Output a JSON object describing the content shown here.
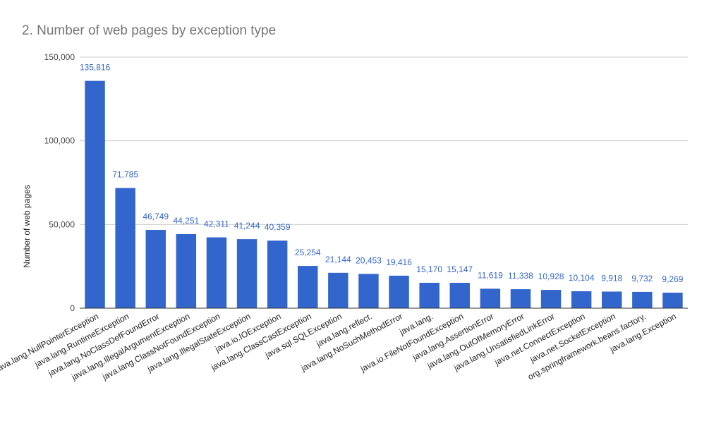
{
  "chart_data": {
    "type": "bar",
    "title": "2. Number of web pages by exception type",
    "xlabel": "",
    "ylabel": "Number of web pages",
    "ylim": [
      0,
      150000
    ],
    "yticks": [
      0,
      50000,
      100000,
      150000
    ],
    "ytick_labels": [
      "0",
      "50,000",
      "100,000",
      "150,000"
    ],
    "grid": true,
    "legend": "none",
    "bar_color": "#3366cc",
    "label_color": "#3366cc",
    "categories": [
      "java.lang.NullPointerException",
      "java.lang.RuntimeException",
      "java.lang.NoClassDefFoundError",
      "java.lang.IllegalArgumentException",
      "java.lang.ClassNotFoundException",
      "java.lang.IllegalStateException",
      "java.io.IOException",
      "java.lang.ClassCastException",
      "java.sql.SQLException",
      "java.lang.reflect.",
      "java.lang.NoSuchMethodError",
      "java.lang.",
      "java.io.FileNotFoundException",
      "java.lang.AssertionError",
      "java.lang.OutOfMemoryError",
      "java.lang.UnsatisfiedLinkError",
      "java.net.ConnectException",
      "java.net.SocketException",
      "org.springframework.beans.factory.",
      "java.lang.Exception"
    ],
    "values": [
      135816,
      71785,
      46749,
      44251,
      42311,
      41244,
      40359,
      25254,
      21144,
      20453,
      19416,
      15170,
      15147,
      11619,
      11338,
      10928,
      10104,
      9918,
      9732,
      9269
    ],
    "value_labels": [
      "135,816",
      "71,785",
      "46,749",
      "44,251",
      "42,311",
      "41,244",
      "40,359",
      "25,254",
      "21,144",
      "20,453",
      "19,416",
      "15,170",
      "15,147",
      "11,619",
      "11,338",
      "10,928",
      "10,104",
      "9,918",
      "9,732",
      "9,269"
    ]
  }
}
